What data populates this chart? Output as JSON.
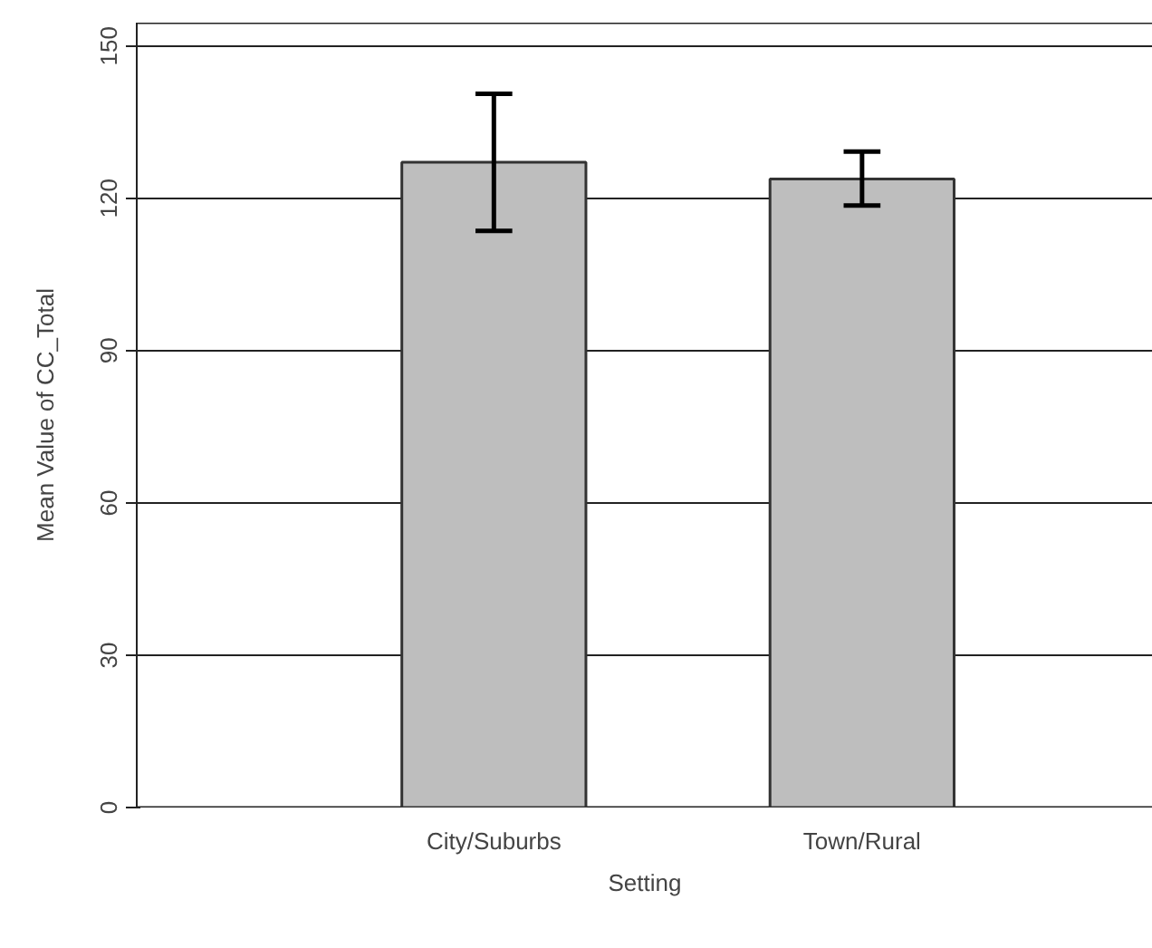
{
  "chart_data": {
    "type": "bar",
    "xlabel": "Setting",
    "ylabel": "Mean Value of CC_Total",
    "categories": [
      "City/Suburbs",
      "Town/Rural"
    ],
    "values": [
      127.1,
      123.8
    ],
    "errors": [
      [
        113.6,
        140.6
      ],
      [
        118.6,
        129.2
      ]
    ],
    "color": "#bebebe",
    "ylim": [
      0,
      154.6
    ],
    "yticks": [
      0,
      30,
      60,
      90,
      120,
      150
    ],
    "grid": "y"
  }
}
